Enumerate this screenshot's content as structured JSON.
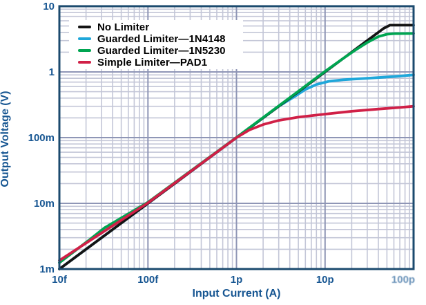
{
  "palette": {
    "text_navy": "#175692",
    "frame": "#1b4a6e",
    "grid_major": "#8f96b6",
    "grid_minor": "#c3c6d7",
    "background": "#ffffff"
  },
  "chart_data": {
    "type": "line",
    "title": "",
    "xlabel": "Input Current (A)",
    "ylabel": "Output Voltage (V)",
    "x_scale": "log",
    "y_scale": "log",
    "xlim": [
      1e-14,
      1e-10
    ],
    "ylim": [
      0.001,
      10
    ],
    "grid": "on",
    "legend_position": "top-left",
    "x_ticks": [
      {
        "value": 1e-14,
        "label": "10f"
      },
      {
        "value": 1e-13,
        "label": "100f"
      },
      {
        "value": 1e-12,
        "label": "1p"
      },
      {
        "value": 1e-11,
        "label": "10p"
      },
      {
        "value": 1e-10,
        "label": "100p",
        "faded": true
      }
    ],
    "y_ticks": [
      {
        "value": 0.001,
        "label": "1m"
      },
      {
        "value": 0.01,
        "label": "10m"
      },
      {
        "value": 0.1,
        "label": "100m"
      },
      {
        "value": 1,
        "label": "1"
      },
      {
        "value": 10,
        "label": "10"
      }
    ],
    "draw_order": [
      1,
      0,
      2,
      3
    ],
    "series": [
      {
        "name": "No Limiter",
        "color": "#141414",
        "points": [
          [
            1e-14,
            0.001
          ],
          [
            1e-13,
            0.01
          ],
          [
            1e-12,
            0.1
          ],
          [
            1e-11,
            1.0
          ],
          [
            3e-11,
            3.0
          ],
          [
            4.6e-11,
            4.6
          ],
          [
            5.4e-11,
            5.15
          ],
          [
            1e-10,
            5.15
          ]
        ]
      },
      {
        "name": "Guarded Limiter—1N4148",
        "color": "#1fa7da",
        "points": [
          [
            1e-14,
            0.001
          ],
          [
            1e-13,
            0.01
          ],
          [
            1e-12,
            0.1
          ],
          [
            3e-12,
            0.3
          ],
          [
            4.5e-12,
            0.42
          ],
          [
            6e-12,
            0.54
          ],
          [
            8e-12,
            0.645
          ],
          [
            1.1e-11,
            0.72
          ],
          [
            1.6e-11,
            0.76
          ],
          [
            3e-11,
            0.8
          ],
          [
            6e-11,
            0.85
          ],
          [
            1e-10,
            0.9
          ]
        ]
      },
      {
        "name": "Guarded Limiter—1N5230",
        "color": "#00a551",
        "points": [
          [
            1e-14,
            0.00125
          ],
          [
            2.2e-14,
            0.0028
          ],
          [
            3.2e-14,
            0.0042
          ],
          [
            1e-13,
            0.0104
          ],
          [
            1e-12,
            0.101
          ],
          [
            1e-11,
            1.02
          ],
          [
            1.6e-11,
            1.6
          ],
          [
            2.2e-11,
            2.15
          ],
          [
            3e-11,
            2.8
          ],
          [
            4e-11,
            3.45
          ],
          [
            5e-11,
            3.75
          ],
          [
            6e-11,
            3.83
          ],
          [
            1e-10,
            3.85
          ]
        ]
      },
      {
        "name": "Simple Limiter—PAD1",
        "color": "#d02047",
        "points": [
          [
            1e-14,
            0.00135
          ],
          [
            1e-13,
            0.0102
          ],
          [
            1e-12,
            0.1
          ],
          [
            1.4e-12,
            0.131
          ],
          [
            2e-12,
            0.158
          ],
          [
            3e-12,
            0.183
          ],
          [
            5e-12,
            0.205
          ],
          [
            1e-11,
            0.228
          ],
          [
            2e-11,
            0.252
          ],
          [
            4e-11,
            0.272
          ],
          [
            7e-11,
            0.288
          ],
          [
            1e-10,
            0.3
          ]
        ]
      }
    ]
  }
}
